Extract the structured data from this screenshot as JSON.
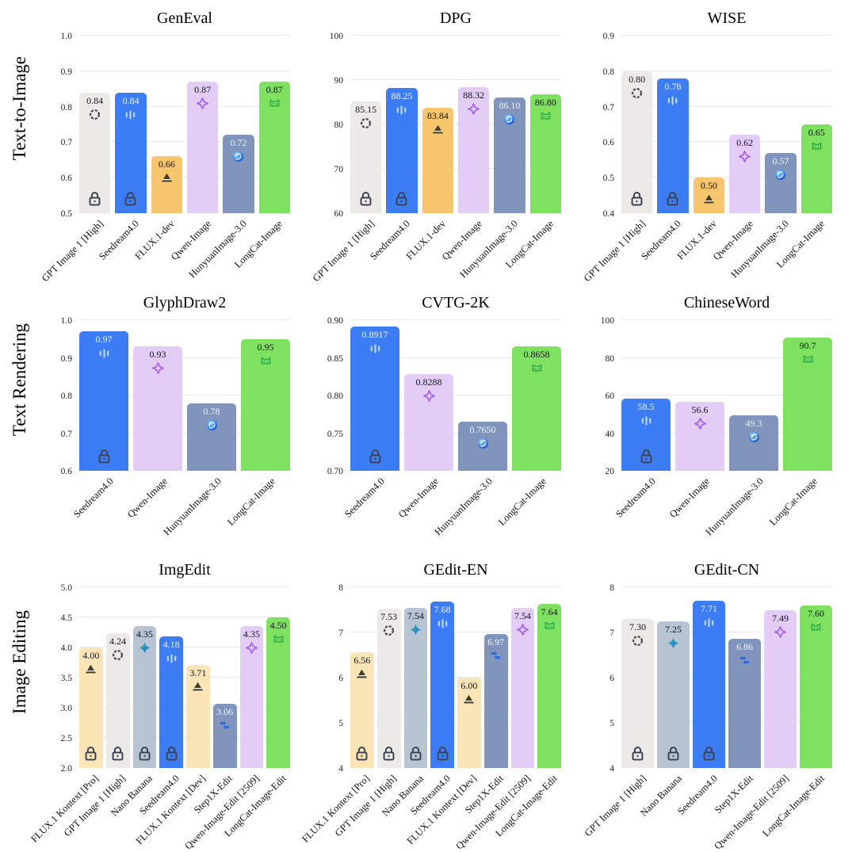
{
  "figure": {
    "row_labels": [
      "Text-to-Image",
      "Text Rendering",
      "Image Editing"
    ]
  },
  "palette": {
    "gray": "#ECEAE7",
    "blue": "#3C7DF6",
    "orange": "#F6C56C",
    "cream": "#FBE4B6",
    "lavender": "#E3CCF5",
    "slate": "#8094BC",
    "green": "#7EE160",
    "nanogray": "#B9C4D2",
    "grid": "#E8E8E8",
    "lock": "#3E4452",
    "value_text_dark": "#15151F",
    "value_text_light": "#EDF3FE"
  },
  "icon_colors": {
    "openai": "#4A4A4A",
    "seedream": "#BFD9FF",
    "flux": "#463A1E",
    "qwen": "#A15CEB",
    "hunyuan_light": "#9FD8FF",
    "hunyuan_mid": "#3F8DF0",
    "hunyuan_dark": "#1250C8",
    "longcat": "#2FAE4E",
    "nano_banana_start": "#2BB7A0",
    "nano_banana_end": "#2F6BDB",
    "step1x": "#2F6BDB"
  },
  "chart_data": [
    {
      "type": "bar",
      "section": "Text-to-Image",
      "title": "GenEval",
      "ylim": [
        0.5,
        1.0
      ],
      "yticks": [
        {
          "value": 1.0,
          "label": "1.0"
        },
        {
          "value": 0.9,
          "label": "0.9"
        },
        {
          "value": 0.8,
          "label": "0.8"
        },
        {
          "value": 0.7,
          "label": "0.7"
        },
        {
          "value": 0.6,
          "label": "0.6"
        },
        {
          "value": 0.5,
          "label": "0.5"
        }
      ],
      "categories": [
        "GPT Image 1 [High]",
        "Seedream4.0",
        "FLUX.1-dev",
        "Qwen-Image",
        "HunyuanImage-3.0",
        "LongCat-Image"
      ],
      "values": [
        0.84,
        0.84,
        0.66,
        0.87,
        0.72,
        0.87
      ],
      "value_labels": [
        "0.84",
        "0.84",
        "0.66",
        "0.87",
        "0.72",
        "0.87"
      ],
      "colors": [
        "gray",
        "blue",
        "orange",
        "lavender",
        "slate",
        "green"
      ],
      "icons": [
        "openai-icon",
        "seedream-icon",
        "flux-icon",
        "qwen-icon",
        "hunyuan-icon",
        "longcat-icon"
      ],
      "locked": [
        true,
        true,
        false,
        false,
        false,
        false
      ]
    },
    {
      "type": "bar",
      "section": "Text-to-Image",
      "title": "DPG",
      "ylim": [
        60,
        100
      ],
      "yticks": [
        {
          "value": 100,
          "label": "100"
        },
        {
          "value": 90,
          "label": "90"
        },
        {
          "value": 80,
          "label": "80"
        },
        {
          "value": 70,
          "label": "70"
        },
        {
          "value": 60,
          "label": "60"
        }
      ],
      "categories": [
        "GPT Image 1 [High]",
        "Seedream4.0",
        "FLUX.1-dev",
        "Qwen-Image",
        "HunyuanImage-3.0",
        "LongCat-Image"
      ],
      "values": [
        85.15,
        88.25,
        83.84,
        88.32,
        86.1,
        86.8
      ],
      "value_labels": [
        "85.15",
        "88.25",
        "83.84",
        "88.32",
        "86.10",
        "86.80"
      ],
      "colors": [
        "gray",
        "blue",
        "orange",
        "lavender",
        "slate",
        "green"
      ],
      "icons": [
        "openai-icon",
        "seedream-icon",
        "flux-icon",
        "qwen-icon",
        "hunyuan-icon",
        "longcat-icon"
      ],
      "locked": [
        true,
        true,
        false,
        false,
        false,
        false
      ]
    },
    {
      "type": "bar",
      "section": "Text-to-Image",
      "title": "WISE",
      "ylim": [
        0.4,
        0.9
      ],
      "yticks": [
        {
          "value": 0.9,
          "label": "0.9"
        },
        {
          "value": 0.8,
          "label": "0.8"
        },
        {
          "value": 0.7,
          "label": "0.7"
        },
        {
          "value": 0.6,
          "label": "0.6"
        },
        {
          "value": 0.5,
          "label": "0.5"
        },
        {
          "value": 0.4,
          "label": "0.4"
        }
      ],
      "categories": [
        "GPT Image 1 [High]",
        "Seedream4.0",
        "FLUX.1-dev",
        "Qwen-Image",
        "HunyuanImage-3.0",
        "LongCat-Image"
      ],
      "values": [
        0.8,
        0.78,
        0.5,
        0.62,
        0.57,
        0.65
      ],
      "value_labels": [
        "0.80",
        "0.78",
        "0.50",
        "0.62",
        "0.57",
        "0.65"
      ],
      "colors": [
        "gray",
        "blue",
        "orange",
        "lavender",
        "slate",
        "green"
      ],
      "icons": [
        "openai-icon",
        "seedream-icon",
        "flux-icon",
        "qwen-icon",
        "hunyuan-icon",
        "longcat-icon"
      ],
      "locked": [
        true,
        true,
        false,
        false,
        false,
        false
      ]
    },
    {
      "type": "bar",
      "section": "Text Rendering",
      "title": "GlyphDraw2",
      "ylim": [
        0.6,
        1.0
      ],
      "yticks": [
        {
          "value": 1.0,
          "label": "1.0"
        },
        {
          "value": 0.9,
          "label": "0.9"
        },
        {
          "value": 0.8,
          "label": "0.8"
        },
        {
          "value": 0.7,
          "label": "0.7"
        },
        {
          "value": 0.6,
          "label": "0.6"
        }
      ],
      "categories": [
        "Seedream4.0",
        "Qwen-Image",
        "HunyuanImage-3.0",
        "LongCat-Image"
      ],
      "values": [
        0.97,
        0.93,
        0.78,
        0.95
      ],
      "value_labels": [
        "0.97",
        "0.93",
        "0.78",
        "0.95"
      ],
      "colors": [
        "blue",
        "lavender",
        "slate",
        "green"
      ],
      "icons": [
        "seedream-icon",
        "qwen-icon",
        "hunyuan-icon",
        "longcat-icon"
      ],
      "locked": [
        true,
        false,
        false,
        false
      ]
    },
    {
      "type": "bar",
      "section": "Text Rendering",
      "title": "CVTG-2K",
      "ylim": [
        0.7,
        0.9
      ],
      "yticks": [
        {
          "value": 0.9,
          "label": "0.90"
        },
        {
          "value": 0.85,
          "label": "0.85"
        },
        {
          "value": 0.8,
          "label": "0.80"
        },
        {
          "value": 0.75,
          "label": "0.75"
        },
        {
          "value": 0.7,
          "label": "0.70"
        }
      ],
      "categories": [
        "Seedream4.0",
        "Qwen-Image",
        "HunyuanImage-3.0",
        "LongCat-Image"
      ],
      "values": [
        0.8917,
        0.8288,
        0.765,
        0.8658
      ],
      "value_labels": [
        "0.8917",
        "0.8288",
        "0.7650",
        "0.8658"
      ],
      "colors": [
        "blue",
        "lavender",
        "slate",
        "green"
      ],
      "icons": [
        "seedream-icon",
        "qwen-icon",
        "hunyuan-icon",
        "longcat-icon"
      ],
      "locked": [
        true,
        false,
        false,
        false
      ]
    },
    {
      "type": "bar",
      "section": "Text Rendering",
      "title": "ChineseWord",
      "ylim": [
        20,
        100
      ],
      "yticks": [
        {
          "value": 100,
          "label": "100"
        },
        {
          "value": 80,
          "label": "80"
        },
        {
          "value": 60,
          "label": "60"
        },
        {
          "value": 40,
          "label": "40"
        },
        {
          "value": 20,
          "label": "20"
        }
      ],
      "categories": [
        "Seedream4.0",
        "Qwen-Image",
        "HunyuanImage-3.0",
        "LongCat-Image"
      ],
      "values": [
        58.5,
        56.6,
        49.3,
        90.7
      ],
      "value_labels": [
        "58.5",
        "56.6",
        "49.3",
        "90.7"
      ],
      "colors": [
        "blue",
        "lavender",
        "slate",
        "green"
      ],
      "icons": [
        "seedream-icon",
        "qwen-icon",
        "hunyuan-icon",
        "longcat-icon"
      ],
      "locked": [
        true,
        false,
        false,
        false
      ]
    },
    {
      "type": "bar",
      "section": "Image Editing",
      "title": "ImgEdit",
      "ylim": [
        2.0,
        5.0
      ],
      "yticks": [
        {
          "value": 5.0,
          "label": "5.0"
        },
        {
          "value": 4.5,
          "label": "4.5"
        },
        {
          "value": 4.0,
          "label": "4.0"
        },
        {
          "value": 3.5,
          "label": "3.5"
        },
        {
          "value": 3.0,
          "label": "3.0"
        },
        {
          "value": 2.5,
          "label": "2.5"
        },
        {
          "value": 2.0,
          "label": "2.0"
        }
      ],
      "categories": [
        "FLUX.1 Kontext [Pro]",
        "GPT Image 1 [High]",
        "Nano Banana",
        "Seedream4.0",
        "FLUX.1 Kontext [Dev]",
        "Step1X-Edit",
        "Qwen-Image-Edit [2509]",
        "LongCat-Image-Edit"
      ],
      "values": [
        4.0,
        4.24,
        4.35,
        4.18,
        3.71,
        3.06,
        4.35,
        4.5
      ],
      "value_labels": [
        "4.00",
        "4.24",
        "4.35",
        "4.18",
        "3.71",
        "3.06",
        "4.35",
        "4.50"
      ],
      "colors": [
        "cream",
        "gray",
        "nanogray",
        "blue",
        "cream",
        "slate",
        "lavender",
        "green"
      ],
      "icons": [
        "flux-icon",
        "openai-icon",
        "nano-banana-icon",
        "seedream-icon",
        "flux-icon",
        "step1x-icon",
        "qwen-icon",
        "longcat-icon"
      ],
      "locked": [
        true,
        true,
        true,
        true,
        false,
        false,
        false,
        false
      ]
    },
    {
      "type": "bar",
      "section": "Image Editing",
      "title": "GEdit-EN",
      "ylim": [
        4,
        8
      ],
      "yticks": [
        {
          "value": 8,
          "label": "8"
        },
        {
          "value": 7,
          "label": "7"
        },
        {
          "value": 6,
          "label": "6"
        },
        {
          "value": 5,
          "label": "5"
        },
        {
          "value": 4,
          "label": "4"
        }
      ],
      "categories": [
        "FLUX.1 Kontext [Pro]",
        "GPT Image 1 [High]",
        "Nano Banana",
        "Seedream4.0",
        "FLUX.1 Kontext [Dev]",
        "Step1X-Edit",
        "Qwen-Image-Edit [2509]",
        "LongCat-Image-Edit"
      ],
      "values": [
        6.56,
        7.53,
        7.54,
        7.68,
        6.0,
        6.97,
        7.54,
        7.64
      ],
      "value_labels": [
        "6.56",
        "7.53",
        "7.54",
        "7.68",
        "6.00",
        "6.97",
        "7.54",
        "7.64"
      ],
      "colors": [
        "cream",
        "gray",
        "nanogray",
        "blue",
        "cream",
        "slate",
        "lavender",
        "green"
      ],
      "icons": [
        "flux-icon",
        "openai-icon",
        "nano-banana-icon",
        "seedream-icon",
        "flux-icon",
        "step1x-icon",
        "qwen-icon",
        "longcat-icon"
      ],
      "locked": [
        true,
        true,
        true,
        true,
        false,
        false,
        false,
        false
      ]
    },
    {
      "type": "bar",
      "section": "Image Editing",
      "title": "GEdit-CN",
      "ylim": [
        4,
        8
      ],
      "yticks": [
        {
          "value": 8,
          "label": "8"
        },
        {
          "value": 7,
          "label": "7"
        },
        {
          "value": 6,
          "label": "6"
        },
        {
          "value": 5,
          "label": "5"
        },
        {
          "value": 4,
          "label": "4"
        }
      ],
      "categories": [
        "GPT Image 1 [High]",
        "Nano Banana",
        "Seedream4.0",
        "Step1X-Edit",
        "Qwen-Image-Edit [2509]",
        "LongCat-Image-Edit"
      ],
      "values": [
        7.3,
        7.25,
        7.71,
        6.86,
        7.49,
        7.6
      ],
      "value_labels": [
        "7.30",
        "7.25",
        "7.71",
        "6.86",
        "7.49",
        "7.60"
      ],
      "colors": [
        "gray",
        "nanogray",
        "blue",
        "slate",
        "lavender",
        "green"
      ],
      "icons": [
        "openai-icon",
        "nano-banana-icon",
        "seedream-icon",
        "step1x-icon",
        "qwen-icon",
        "longcat-icon"
      ],
      "locked": [
        true,
        true,
        true,
        false,
        false,
        false
      ]
    }
  ]
}
